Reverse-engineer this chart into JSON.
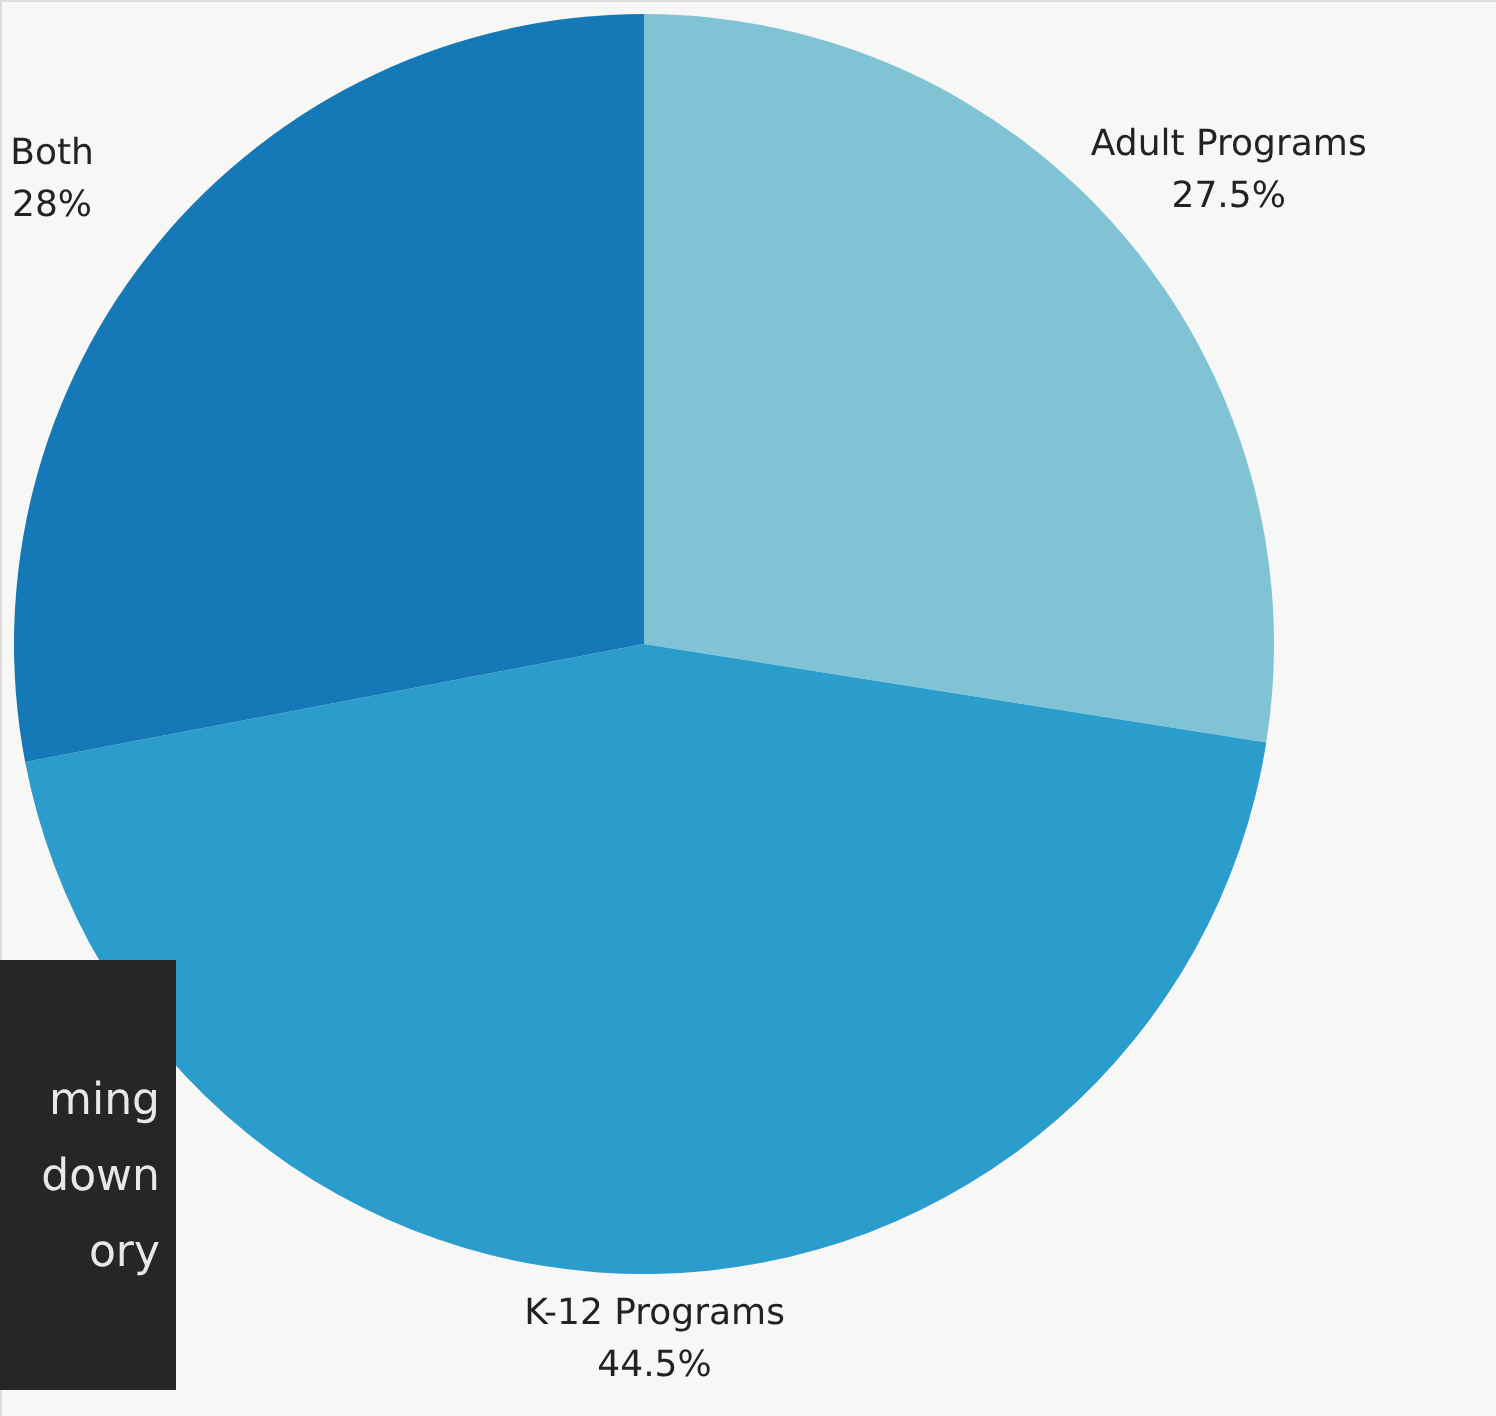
{
  "chart_data": {
    "type": "pie",
    "categories": [
      "Adult Programs",
      "K-12 Programs",
      "Both"
    ],
    "values": [
      27.5,
      44.5,
      28
    ],
    "colors": [
      "#80c3d4",
      "#2b9dcd",
      "#1479b6"
    ],
    "value_labels": [
      "27.5%",
      "44.5%",
      "28%"
    ],
    "annotations": [
      "ming\ndown\nory"
    ]
  }
}
